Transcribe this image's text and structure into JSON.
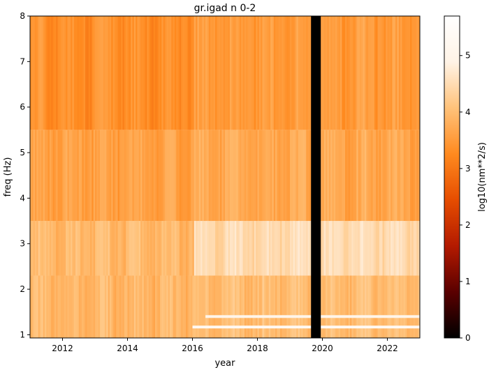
{
  "chart_data": {
    "type": "heatmap",
    "title": "gr.igad n 0-2",
    "xlabel": "year",
    "ylabel": "freq (Hz)",
    "xlim": [
      2011.0,
      2023.0
    ],
    "ylim": [
      0.93,
      8.0
    ],
    "x_ticks": [
      2012,
      2014,
      2016,
      2018,
      2020,
      2022
    ],
    "y_ticks": [
      1,
      2,
      3,
      4,
      5,
      6,
      7,
      8
    ],
    "colorbar": {
      "label": "log10(nm**2/s)",
      "range": [
        0,
        5.7
      ],
      "ticks": [
        0,
        1,
        2,
        3,
        4,
        5
      ],
      "colormap": [
        "#000000",
        "#5a0000",
        "#b31a00",
        "#e64d00",
        "#ff8a1f",
        "#ffc27a",
        "#fff3e6",
        "#ffffff"
      ]
    },
    "data_gap": {
      "x_start": 2019.65,
      "x_end": 2019.95,
      "value": 0
    },
    "bands": [
      {
        "y_range": [
          0.93,
          2.3
        ],
        "before_2016": 3.9,
        "after_2016": 4.0
      },
      {
        "y_range": [
          2.3,
          3.5
        ],
        "before_2016": 3.95,
        "after_2016": 4.5
      },
      {
        "y_range": [
          3.5,
          5.5
        ],
        "before_2016": 3.6,
        "after_2016": 3.7
      },
      {
        "y_range": [
          5.5,
          8.0
        ],
        "before_2016": 3.35,
        "after_2016": 3.5
      }
    ],
    "spectral_lines": [
      {
        "freq": 1.17,
        "x_start": 2016.0,
        "x_end": 2023.0,
        "value": 5.3
      },
      {
        "freq": 1.4,
        "x_start": 2016.4,
        "x_end": 2023.0,
        "value": 5.0
      }
    ]
  }
}
